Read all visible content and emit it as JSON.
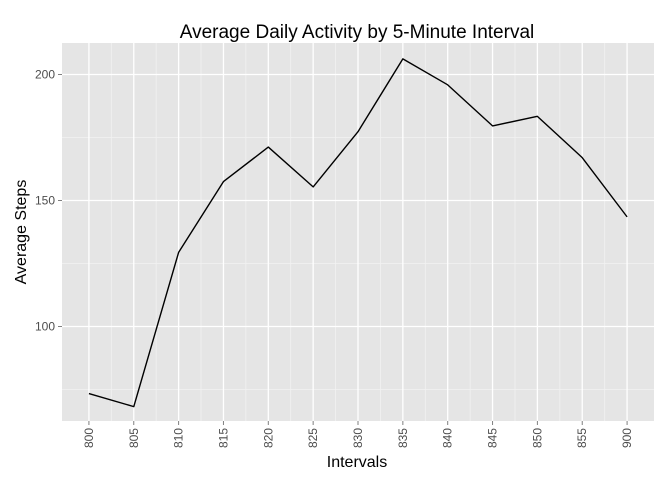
{
  "chart_data": {
    "type": "line",
    "title": "Average Daily Activity by 5-Minute Interval",
    "xlabel": "Intervals",
    "ylabel": "Average Steps",
    "categories": [
      "800",
      "805",
      "810",
      "815",
      "820",
      "825",
      "830",
      "835",
      "840",
      "845",
      "850",
      "855",
      "900"
    ],
    "series": [
      {
        "values": [
          73.4,
          68.2,
          129.4,
          157.5,
          171.2,
          155.4,
          177.3,
          206.2,
          195.9,
          179.6,
          183.4,
          167.0,
          143.5
        ]
      }
    ],
    "yticks": [
      100,
      150,
      200
    ],
    "ylim": [
      62.5,
      212.5
    ],
    "grid": true,
    "x_tick_label_rotation": "vertical",
    "colors": {
      "panel_background": "#e5e5e5",
      "grid_major": "#ffffff",
      "grid_minor": "#f2f2f2",
      "line": "#000000",
      "tick_text": "#4d4d4d"
    }
  }
}
